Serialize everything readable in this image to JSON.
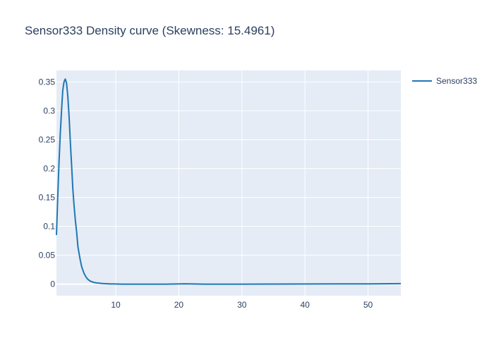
{
  "chart_data": {
    "type": "line",
    "title": "Sensor333 Density curve (Skewness: 15.4961)",
    "xlabel": "",
    "ylabel": "",
    "xlim": [
      0.6,
      55.2
    ],
    "ylim": [
      -0.02,
      0.37
    ],
    "x_ticks": [
      10,
      20,
      30,
      40,
      50
    ],
    "y_ticks": [
      0,
      0.05,
      0.1,
      0.15,
      0.2,
      0.25,
      0.3,
      0.35
    ],
    "y_tick_labels": [
      "0",
      "0.05",
      "0.1",
      "0.15",
      "0.2",
      "0.25",
      "0.3",
      "0.35"
    ],
    "grid": true,
    "legend_position": "top-right",
    "colors": {
      "line": "#1f77b4",
      "plot_bg": "#e5ecf6",
      "grid": "#ffffff",
      "text": "#2a3f5f"
    },
    "series": [
      {
        "name": "Sensor333",
        "x": [
          0.6,
          0.8,
          1.0,
          1.2,
          1.4,
          1.6,
          1.8,
          2.0,
          2.2,
          2.4,
          2.6,
          2.8,
          3.0,
          3.2,
          3.4,
          3.6,
          3.8,
          4.0,
          4.2,
          4.4,
          4.6,
          4.8,
          5.0,
          5.3,
          5.6,
          6.0,
          6.5,
          7.0,
          7.5,
          8.0,
          9.0,
          10.0,
          11.0,
          12.0,
          14.0,
          16.0,
          18.0,
          19.5,
          21.0,
          22.5,
          24.0,
          27.0,
          30.0,
          35.0,
          40.0,
          45.0,
          50.0,
          55.2
        ],
        "y": [
          0.085,
          0.15,
          0.21,
          0.26,
          0.3,
          0.335,
          0.35,
          0.355,
          0.348,
          0.325,
          0.29,
          0.245,
          0.205,
          0.165,
          0.135,
          0.11,
          0.09,
          0.065,
          0.052,
          0.04,
          0.03,
          0.024,
          0.018,
          0.012,
          0.008,
          0.005,
          0.003,
          0.002,
          0.0015,
          0.001,
          0.0005,
          0.0002,
          0.0,
          0.0,
          0.0,
          0.0,
          0.0,
          0.0002,
          0.0006,
          0.0002,
          0.0,
          0.0,
          0.0,
          0.0001,
          0.0002,
          0.0003,
          0.0005,
          0.0008
        ]
      }
    ]
  }
}
